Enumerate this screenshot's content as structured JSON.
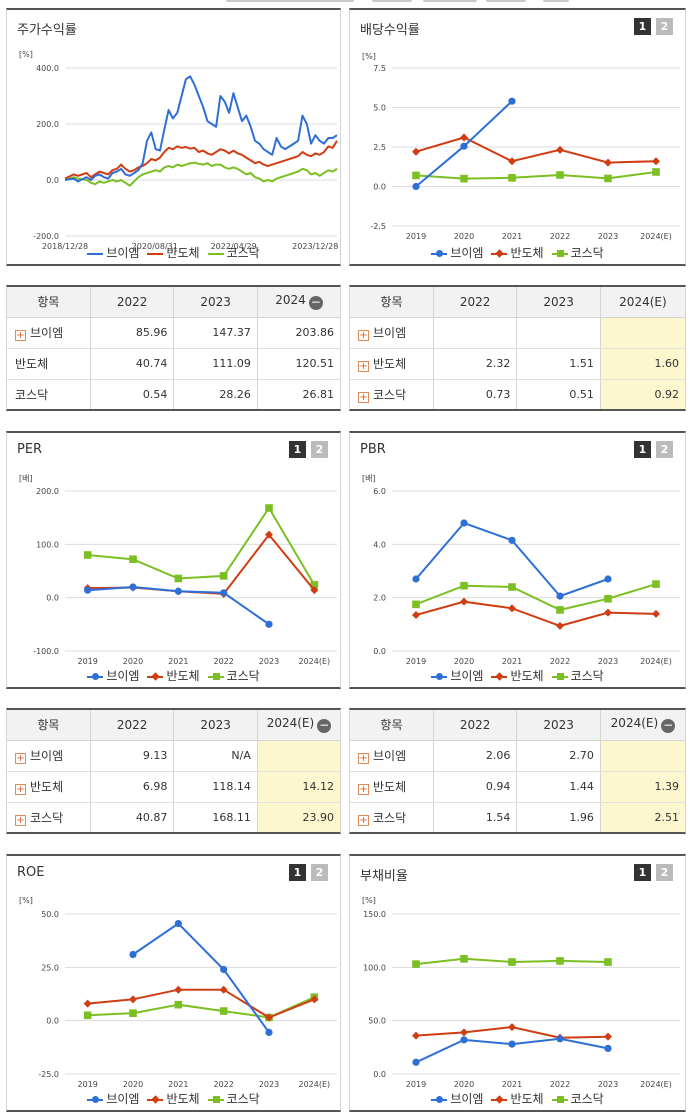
{
  "colors": {
    "s1": "#2e6fd6",
    "s2": "#d03d12",
    "s3": "#7bbf22"
  },
  "legend": [
    "브이엠",
    "반도체",
    "코스닥"
  ],
  "pager": [
    "1",
    "2"
  ],
  "charts": [
    {
      "id": "stock",
      "title": "주가수익률",
      "unit": "[%]",
      "has_pager": false,
      "chart_data": {
        "type": "line",
        "ylim": [
          -200,
          400
        ],
        "yticks": [
          "400.0",
          "200.0",
          "0.0",
          "-200.0"
        ],
        "x_labels": [
          "2018/12/28",
          "2020/08/31",
          "2022/04/29",
          "2023/12/28"
        ],
        "x_range": [
          "2018/12/28",
          "2024/03/29"
        ],
        "series": [
          {
            "name": "브이엠",
            "x": [
              "2018/12/28",
              "2019/02",
              "2019/03",
              "2019/05",
              "2019/06",
              "2019/07",
              "2019/08",
              "2019/09",
              "2019/10",
              "2019/11",
              "2019/12",
              "2020/01",
              "2020/02",
              "2020/03",
              "2020/04",
              "2020/05",
              "2020/06",
              "2020/07",
              "2020/08",
              "2020/09",
              "2020/10",
              "2020/11",
              "2020/12",
              "2021/01",
              "2021/02",
              "2021/03",
              "2021/04",
              "2021/05",
              "2021/06",
              "2021/07",
              "2021/08",
              "2021/09",
              "2021/10",
              "2021/11",
              "2021/12",
              "2022/01",
              "2022/02",
              "2022/03",
              "2022/04",
              "2022/05",
              "2022/06",
              "2022/07",
              "2022/08",
              "2022/09",
              "2022/10",
              "2022/11",
              "2022/12",
              "2023/01",
              "2023/02",
              "2023/03",
              "2023/04",
              "2023/05",
              "2023/06",
              "2023/07",
              "2023/08",
              "2023/09",
              "2023/10",
              "2023/11",
              "2023/12",
              "2024/01",
              "2024/02",
              "2024/03"
            ],
            "values": [
              0,
              5,
              -5,
              10,
              0,
              15,
              20,
              10,
              5,
              25,
              30,
              40,
              20,
              15,
              25,
              35,
              60,
              140,
              170,
              110,
              105,
              180,
              250,
              220,
              240,
              300,
              360,
              370,
              340,
              300,
              260,
              210,
              200,
              190,
              300,
              280,
              240,
              310,
              260,
              210,
              230,
              190,
              140,
              130,
              110,
              100,
              90,
              150,
              120,
              110,
              120,
              130,
              140,
              230,
              200,
              130,
              160,
              140,
              130,
              150,
              150,
              160
            ]
          },
          {
            "name": "반도체",
            "x": [
              "2018/12/28",
              "2019/02",
              "2019/03",
              "2019/05",
              "2019/06",
              "2019/07",
              "2019/08",
              "2019/09",
              "2019/10",
              "2019/11",
              "2019/12",
              "2020/01",
              "2020/02",
              "2020/03",
              "2020/04",
              "2020/05",
              "2020/06",
              "2020/07",
              "2020/08",
              "2020/09",
              "2020/10",
              "2020/11",
              "2020/12",
              "2021/01",
              "2021/02",
              "2021/03",
              "2021/04",
              "2021/05",
              "2021/06",
              "2021/07",
              "2021/08",
              "2021/09",
              "2021/10",
              "2021/11",
              "2021/12",
              "2022/01",
              "2022/02",
              "2022/03",
              "2022/04",
              "2022/05",
              "2022/06",
              "2022/07",
              "2022/08",
              "2022/09",
              "2022/10",
              "2022/11",
              "2022/12",
              "2023/01",
              "2023/02",
              "2023/03",
              "2023/04",
              "2023/05",
              "2023/06",
              "2023/07",
              "2023/08",
              "2023/09",
              "2023/10",
              "2023/11",
              "2023/12",
              "2024/01",
              "2024/02",
              "2024/03"
            ],
            "values": [
              5,
              20,
              15,
              25,
              10,
              20,
              30,
              25,
              20,
              35,
              40,
              55,
              40,
              30,
              35,
              45,
              50,
              60,
              75,
              70,
              80,
              100,
              115,
              110,
              120,
              115,
              118,
              112,
              115,
              100,
              105,
              95,
              90,
              100,
              110,
              105,
              95,
              105,
              95,
              90,
              80,
              70,
              60,
              65,
              55,
              50,
              55,
              60,
              65,
              70,
              75,
              80,
              85,
              100,
              90,
              85,
              95,
              90,
              100,
              120,
              115,
              140
            ]
          },
          {
            "name": "코스닥",
            "x": [
              "2018/12/28",
              "2019/02",
              "2019/03",
              "2019/05",
              "2019/06",
              "2019/07",
              "2019/08",
              "2019/09",
              "2019/10",
              "2019/11",
              "2019/12",
              "2020/01",
              "2020/02",
              "2020/03",
              "2020/04",
              "2020/05",
              "2020/06",
              "2020/07",
              "2020/08",
              "2020/09",
              "2020/10",
              "2020/11",
              "2020/12",
              "2021/01",
              "2021/02",
              "2021/03",
              "2021/04",
              "2021/05",
              "2021/06",
              "2021/07",
              "2021/08",
              "2021/09",
              "2021/10",
              "2021/11",
              "2021/12",
              "2022/01",
              "2022/02",
              "2022/03",
              "2022/04",
              "2022/05",
              "2022/06",
              "2022/07",
              "2022/08",
              "2022/09",
              "2022/10",
              "2022/11",
              "2022/12",
              "2023/01",
              "2023/02",
              "2023/03",
              "2023/04",
              "2023/05",
              "2023/06",
              "2023/07",
              "2023/08",
              "2023/09",
              "2023/10",
              "2023/11",
              "2023/12",
              "2024/01",
              "2024/02",
              "2024/03"
            ],
            "values": [
              0,
              10,
              5,
              0,
              -10,
              -15,
              -5,
              -10,
              -5,
              0,
              -5,
              0,
              -10,
              -20,
              -5,
              10,
              20,
              25,
              30,
              35,
              30,
              45,
              50,
              45,
              55,
              50,
              55,
              60,
              62,
              58,
              55,
              60,
              50,
              55,
              55,
              45,
              40,
              45,
              40,
              30,
              20,
              25,
              10,
              5,
              -5,
              0,
              -5,
              5,
              10,
              15,
              20,
              25,
              30,
              40,
              35,
              20,
              25,
              15,
              25,
              35,
              30,
              40
            ]
          }
        ]
      }
    },
    {
      "id": "div",
      "title": "배당수익률",
      "unit": "[%]",
      "has_pager": true,
      "chart_data": {
        "type": "line",
        "ylim": [
          -2.5,
          7.5
        ],
        "yticks": [
          "7.5",
          "5.0",
          "2.5",
          "0.0",
          "-2.5"
        ],
        "categories": [
          "2019",
          "2020",
          "2021",
          "2022",
          "2023",
          "2024(E)"
        ],
        "series": [
          {
            "name": "브이엠",
            "values": [
              0.0,
              2.55,
              5.4,
              null,
              null,
              null
            ]
          },
          {
            "name": "반도체",
            "values": [
              2.2,
              3.1,
              1.6,
              2.32,
              1.51,
              1.6
            ]
          },
          {
            "name": "코스닥",
            "values": [
              0.7,
              0.5,
              0.55,
              0.73,
              0.51,
              0.92
            ]
          }
        ]
      }
    },
    {
      "id": "per",
      "title": "PER",
      "unit": "[배]",
      "has_pager": true,
      "chart_data": {
        "type": "line",
        "ylim": [
          -100,
          200
        ],
        "yticks": [
          "200.0",
          "100.0",
          "0.0",
          "-100.0"
        ],
        "categories": [
          "2019",
          "2020",
          "2021",
          "2022",
          "2023",
          "2024(E)"
        ],
        "series": [
          {
            "name": "브이엠",
            "values": [
              14,
              20,
              12,
              9.13,
              -50,
              null
            ]
          },
          {
            "name": "반도체",
            "values": [
              18,
              19,
              12,
              6.98,
              118.14,
              14.12
            ]
          },
          {
            "name": "코스닥",
            "values": [
              80,
              72,
              36,
              40.87,
              168.11,
              23.9
            ]
          }
        ]
      }
    },
    {
      "id": "pbr",
      "title": "PBR",
      "unit": "[배]",
      "has_pager": true,
      "chart_data": {
        "type": "line",
        "ylim": [
          0,
          6
        ],
        "yticks": [
          "6.0",
          "4.0",
          "2.0",
          "0.0"
        ],
        "categories": [
          "2019",
          "2020",
          "2021",
          "2022",
          "2023",
          "2024(E)"
        ],
        "series": [
          {
            "name": "브이엠",
            "values": [
              2.7,
              4.8,
              4.15,
              2.06,
              2.7,
              null
            ]
          },
          {
            "name": "반도체",
            "values": [
              1.35,
              1.85,
              1.6,
              0.94,
              1.44,
              1.39
            ]
          },
          {
            "name": "코스닥",
            "values": [
              1.75,
              2.45,
              2.4,
              1.54,
              1.96,
              2.51
            ]
          }
        ]
      }
    },
    {
      "id": "roe",
      "title": "ROE",
      "unit": "[%]",
      "has_pager": true,
      "chart_data": {
        "type": "line",
        "ylim": [
          -25,
          50
        ],
        "yticks": [
          "50.0",
          "25.0",
          "0.0",
          "-25.0"
        ],
        "categories": [
          "2019",
          "2020",
          "2021",
          "2022",
          "2023",
          "2024(E)"
        ],
        "series": [
          {
            "name": "브이엠",
            "values": [
              null,
              31,
              45.5,
              24,
              -5.5,
              null
            ]
          },
          {
            "name": "반도체",
            "values": [
              8,
              10,
              14.5,
              14.5,
              1.5,
              10
            ]
          },
          {
            "name": "코스닥",
            "values": [
              2.5,
              3.5,
              7.5,
              4.5,
              1.5,
              11
            ]
          }
        ]
      }
    },
    {
      "id": "debt",
      "title": "부채비율",
      "unit": "[%]",
      "has_pager": true,
      "chart_data": {
        "type": "line",
        "ylim": [
          0,
          150
        ],
        "yticks": [
          "150.0",
          "100.0",
          "50.0",
          "0.0"
        ],
        "categories": [
          "2019",
          "2020",
          "2021",
          "2022",
          "2023",
          "2024(E)"
        ],
        "series": [
          {
            "name": "브이엠",
            "values": [
              11,
              32,
              28,
              33,
              24,
              null
            ]
          },
          {
            "name": "반도체",
            "values": [
              36,
              39,
              44,
              34,
              35,
              null
            ]
          },
          {
            "name": "코스닥",
            "values": [
              103,
              108,
              105,
              106,
              105,
              null
            ]
          }
        ]
      }
    }
  ],
  "tables": [
    {
      "id": "stock-table",
      "headers": [
        "항목",
        "2022",
        "2023",
        "2024"
      ],
      "minus_header": true,
      "hl_col": -1,
      "rows": [
        {
          "label": "브이엠",
          "plus": true,
          "cells": [
            "85.96",
            "147.37",
            "203.86"
          ]
        },
        {
          "label": "반도체",
          "plus": false,
          "cells": [
            "40.74",
            "111.09",
            "120.51"
          ]
        },
        {
          "label": "코스닥",
          "plus": false,
          "cells": [
            "0.54",
            "28.26",
            "26.81"
          ]
        }
      ]
    },
    {
      "id": "div-table",
      "headers": [
        "항목",
        "2022",
        "2023",
        "2024(E)"
      ],
      "minus_header": false,
      "hl_col": 2,
      "rows": [
        {
          "label": "브이엠",
          "plus": true,
          "cells": [
            "",
            "",
            ""
          ]
        },
        {
          "label": "반도체",
          "plus": true,
          "cells": [
            "2.32",
            "1.51",
            "1.60"
          ]
        },
        {
          "label": "코스닥",
          "plus": true,
          "cells": [
            "0.73",
            "0.51",
            "0.92"
          ]
        }
      ]
    },
    {
      "id": "per-table",
      "headers": [
        "항목",
        "2022",
        "2023",
        "2024(E)"
      ],
      "minus_header": true,
      "hl_col": 2,
      "rows": [
        {
          "label": "브이엠",
          "plus": true,
          "cells": [
            "9.13",
            "N/A",
            ""
          ]
        },
        {
          "label": "반도체",
          "plus": true,
          "cells": [
            "6.98",
            "118.14",
            "14.12"
          ]
        },
        {
          "label": "코스닥",
          "plus": true,
          "cells": [
            "40.87",
            "168.11",
            "23.90"
          ]
        }
      ]
    },
    {
      "id": "pbr-table",
      "headers": [
        "항목",
        "2022",
        "2023",
        "2024(E)"
      ],
      "minus_header": true,
      "hl_col": 2,
      "rows": [
        {
          "label": "브이엠",
          "plus": true,
          "cells": [
            "2.06",
            "2.70",
            ""
          ]
        },
        {
          "label": "반도체",
          "plus": true,
          "cells": [
            "0.94",
            "1.44",
            "1.39"
          ]
        },
        {
          "label": "코스닥",
          "plus": true,
          "cells": [
            "1.54",
            "1.96",
            "2.51"
          ]
        }
      ]
    }
  ]
}
